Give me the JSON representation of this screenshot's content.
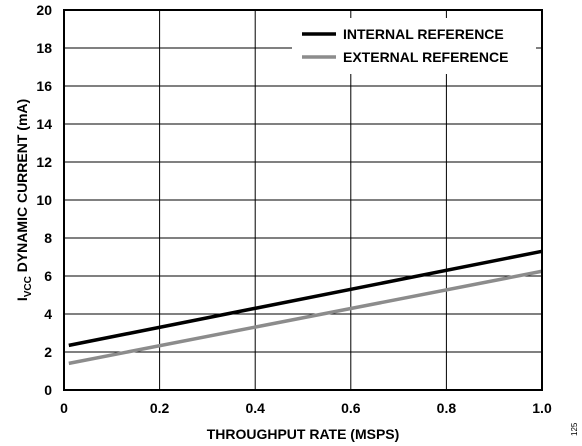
{
  "chart_data": {
    "type": "line",
    "title": "",
    "xlabel": "THROUGHPUT RATE (MSPS)",
    "ylabel_main": "I",
    "ylabel_sub": "VCC",
    "ylabel_rest": " DYNAMIC CURRENT (mA)",
    "xlim": [
      0,
      1.0
    ],
    "ylim": [
      0,
      20
    ],
    "x_ticks": [
      "0",
      "0.2",
      "0.4",
      "0.6",
      "0.8",
      "1.0"
    ],
    "x_tick_values": [
      0,
      0.2,
      0.4,
      0.6,
      0.8,
      1.0
    ],
    "y_ticks": [
      "0",
      "2",
      "4",
      "6",
      "8",
      "10",
      "12",
      "14",
      "16",
      "18",
      "20"
    ],
    "y_tick_values": [
      0,
      2,
      4,
      6,
      8,
      10,
      12,
      14,
      16,
      18,
      20
    ],
    "grid": true,
    "legend_position": "top-right",
    "series": [
      {
        "name": "INTERNAL REFERENCE",
        "color": "#000000",
        "x": [
          0.01,
          1.0
        ],
        "y": [
          2.35,
          7.3
        ]
      },
      {
        "name": "EXTERNAL REFERENCE",
        "color": "#8c8c8c",
        "x": [
          0.01,
          1.0
        ],
        "y": [
          1.4,
          6.25
        ]
      }
    ],
    "side_note": "125"
  }
}
